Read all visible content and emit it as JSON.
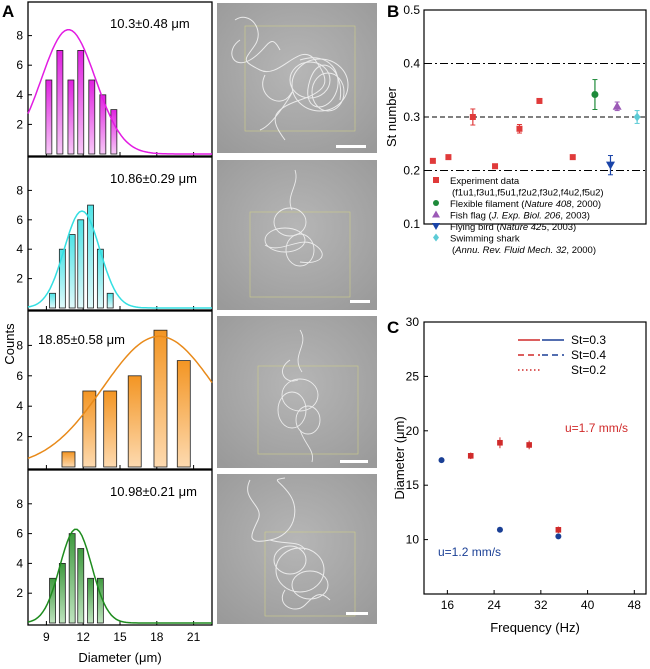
{
  "figure": {
    "ylabel_A": "Counts"
  },
  "chart_data": [
    {
      "panel": "A",
      "type": "bar",
      "subpanel": 1,
      "annotation": "10.3±0.48 μm",
      "color": "#e21ce2",
      "curve_color": "#e21ce2",
      "xlabel": "Diameter (μm)",
      "xticks": [
        9,
        12,
        15,
        18,
        21
      ],
      "xlim": [
        7.5,
        22.5
      ],
      "yticks": [
        2,
        4,
        6,
        8
      ],
      "ylim": [
        0,
        10
      ],
      "x": [
        9.2,
        10.1,
        11.0,
        11.8,
        12.7,
        13.6,
        14.5
      ],
      "values": [
        5,
        7,
        5,
        7,
        5,
        4,
        3
      ],
      "fit": {
        "mean": 10.8,
        "sd": 2.2,
        "peak": 8.4
      }
    },
    {
      "panel": "A",
      "type": "bar",
      "subpanel": 2,
      "annotation": "10.86±0.29 μm",
      "color": "#5de9ea",
      "curve_color": "#34dfe2",
      "xticks": [
        9,
        12,
        15,
        18,
        21
      ],
      "xlim": [
        7.5,
        22.5
      ],
      "yticks": [
        2,
        4,
        6,
        8
      ],
      "ylim": [
        0,
        10
      ],
      "x": [
        9.5,
        10.3,
        11.1,
        11.8,
        12.6,
        13.4,
        14.2
      ],
      "values": [
        1,
        4,
        5,
        6,
        7,
        4,
        1
      ],
      "fit": {
        "mean": 11.9,
        "sd": 1.45,
        "peak": 6.6
      }
    },
    {
      "panel": "A",
      "type": "bar",
      "subpanel": 3,
      "annotation": "18.85±0.58 μm",
      "color": "#f6a23b",
      "curve_color": "#e88a1a",
      "xticks": [
        9,
        12,
        15,
        18,
        21
      ],
      "xlim": [
        7.5,
        22.5
      ],
      "yticks": [
        2,
        4,
        6,
        8
      ],
      "ylim": [
        0,
        10
      ],
      "x": [
        10.8,
        12.5,
        14.2,
        16.2,
        18.3,
        20.2
      ],
      "values": [
        1,
        5,
        5,
        6,
        9,
        7
      ],
      "fit": {
        "mean": 18.2,
        "sd": 4.6,
        "peak": 8.6
      }
    },
    {
      "panel": "A",
      "type": "bar",
      "subpanel": 4,
      "annotation": "10.98±0.21 μm",
      "color": "#4ea64e",
      "curve_color": "#1e8c1e",
      "xticks": [
        9,
        12,
        15,
        18,
        21
      ],
      "xlim": [
        7.5,
        22.5
      ],
      "yticks": [
        2,
        4,
        6,
        8
      ],
      "ylim": [
        0,
        10
      ],
      "x": [
        9.5,
        10.3,
        11.1,
        11.8,
        12.6,
        13.4
      ],
      "values": [
        3,
        4,
        6,
        5,
        3,
        3
      ],
      "fit": {
        "mean": 11.4,
        "sd": 1.3,
        "peak": 6.3
      }
    },
    {
      "panel": "B",
      "type": "scatter",
      "ylabel": "St number",
      "yticks": [
        0.1,
        0.2,
        0.3,
        0.4,
        0.5
      ],
      "ylim": [
        0.1,
        0.5
      ],
      "xlim": [
        0,
        10
      ],
      "hlines": [
        {
          "y": 0.4,
          "style": "dashdot"
        },
        {
          "y": 0.3,
          "style": "dashed"
        },
        {
          "y": 0.2,
          "style": "dashdot"
        }
      ],
      "series": [
        {
          "name": "Experiment data",
          "marker": "square",
          "color": "#e03a3a",
          "x": [
            0.4,
            1.1,
            2.2,
            3.2,
            4.3,
            5.2,
            6.7
          ],
          "y": [
            0.218,
            0.225,
            0.3,
            0.208,
            0.278,
            0.33,
            0.225
          ],
          "err": [
            0.003,
            0.004,
            0.015,
            0.003,
            0.008,
            0.004,
            0.003
          ]
        },
        {
          "name": "Flexible filament",
          "marker": "circle",
          "color": "#1e8a3a",
          "x": [
            7.7
          ],
          "y": [
            0.342
          ],
          "err": [
            0.028
          ]
        },
        {
          "name": "Fish flag",
          "marker": "triangle-up",
          "color": "#9b59b6",
          "x": [
            8.7
          ],
          "y": [
            0.32
          ],
          "err": [
            0.008
          ]
        },
        {
          "name": "Flying bird",
          "marker": "triangle-down",
          "color": "#1a44a8",
          "x": [
            8.4
          ],
          "y": [
            0.21
          ],
          "err": [
            0.018
          ]
        },
        {
          "name": "Swimming shark",
          "marker": "diamond",
          "color": "#5ccbd6",
          "x": [
            9.6
          ],
          "y": [
            0.3
          ],
          "err": [
            0.012
          ]
        }
      ],
      "legend": [
        {
          "marker": "square",
          "color": "#e03a3a",
          "text": "Experiment data",
          "italic": "",
          "suffix": ""
        },
        {
          "marker": "none",
          "color": "",
          "text": "(f1u1,f3u1,f5u1,f2u2,f3u2,f4u2,f5u2)",
          "italic": "",
          "suffix": ""
        },
        {
          "marker": "circle",
          "color": "#1e8a3a",
          "text": "Flexible filament (",
          "italic": "Nature 408",
          "suffix": ", 2000)"
        },
        {
          "marker": "triangle-up",
          "color": "#9b59b6",
          "text": "Fish flag (",
          "italic": "J. Exp. Biol. 206",
          "suffix": ", 2003)"
        },
        {
          "marker": "triangle-down",
          "color": "#1a44a8",
          "text": "Flying bird (",
          "italic": "Nature 425",
          "suffix": ", 2003)"
        },
        {
          "marker": "diamond",
          "color": "#5ccbd6",
          "text": "Swimming shark",
          "italic": "",
          "suffix": ""
        },
        {
          "marker": "none",
          "color": "",
          "text": "(",
          "italic": "Annu. Rev. Fluid Mech. 32",
          "suffix": ", 2000)"
        }
      ]
    },
    {
      "panel": "C",
      "type": "line",
      "xlabel": "Frequency (Hz)",
      "ylabel": "Diameter (μm)",
      "xticks": [
        16,
        24,
        32,
        40,
        48
      ],
      "yticks": [
        10,
        15,
        20,
        25,
        30
      ],
      "xlim": [
        12,
        50
      ],
      "ylim": [
        5,
        30
      ],
      "legend": [
        {
          "style": "solid",
          "label": "St=0.3"
        },
        {
          "style": "dashed",
          "label": "St=0.4"
        },
        {
          "style": "dotted",
          "label": "St=0.2"
        }
      ],
      "annotations": [
        {
          "text": "u=1.7 mm/s",
          "color": "#d02a2a"
        },
        {
          "text": "u=1.2 mm/s",
          "color": "#1a3f95"
        }
      ],
      "series": [
        {
          "label": "St=0.3",
          "velocity": "u=1.7 mm/s",
          "style": "solid",
          "color": "#d02a2a",
          "St": 0.3,
          "u": 1.7
        },
        {
          "label": "St=0.4",
          "velocity": "u=1.7 mm/s",
          "style": "dashed",
          "color": "#d02a2a",
          "St": 0.4,
          "u": 1.7
        },
        {
          "label": "St=0.2",
          "velocity": "u=1.7 mm/s",
          "style": "dotted",
          "color": "#d02a2a",
          "St": 0.2,
          "u": 1.7
        },
        {
          "label": "St=0.3",
          "velocity": "u=1.2 mm/s",
          "style": "solid",
          "color": "#1a3f95",
          "St": 0.3,
          "u": 1.2
        },
        {
          "label": "St=0.4",
          "velocity": "u=1.2 mm/s",
          "style": "dashed",
          "color": "#1a3f95",
          "St": 0.4,
          "u": 1.2
        },
        {
          "label": "St=0.2",
          "velocity": "u=1.2 mm/s",
          "style": "dotted",
          "color": "#1a3f95",
          "St": 0.2,
          "u": 1.2
        }
      ],
      "points": [
        {
          "x": 20,
          "y": 17.7,
          "err": 0.3,
          "color": "#d02a2a",
          "marker": "square"
        },
        {
          "x": 25,
          "y": 18.9,
          "err": 0.5,
          "color": "#d02a2a",
          "marker": "square"
        },
        {
          "x": 30,
          "y": 18.7,
          "err": 0.4,
          "color": "#d02a2a",
          "marker": "square"
        },
        {
          "x": 35,
          "y": 10.9,
          "err": 0.3,
          "color": "#d02a2a",
          "marker": "square"
        },
        {
          "x": 15,
          "y": 17.3,
          "err": 0.2,
          "color": "#1a3f95",
          "marker": "circle"
        },
        {
          "x": 25,
          "y": 10.9,
          "err": 0.2,
          "color": "#1a3f95",
          "marker": "circle"
        },
        {
          "x": 35,
          "y": 10.3,
          "err": 0.2,
          "color": "#1a3f95",
          "marker": "circle"
        }
      ]
    }
  ]
}
